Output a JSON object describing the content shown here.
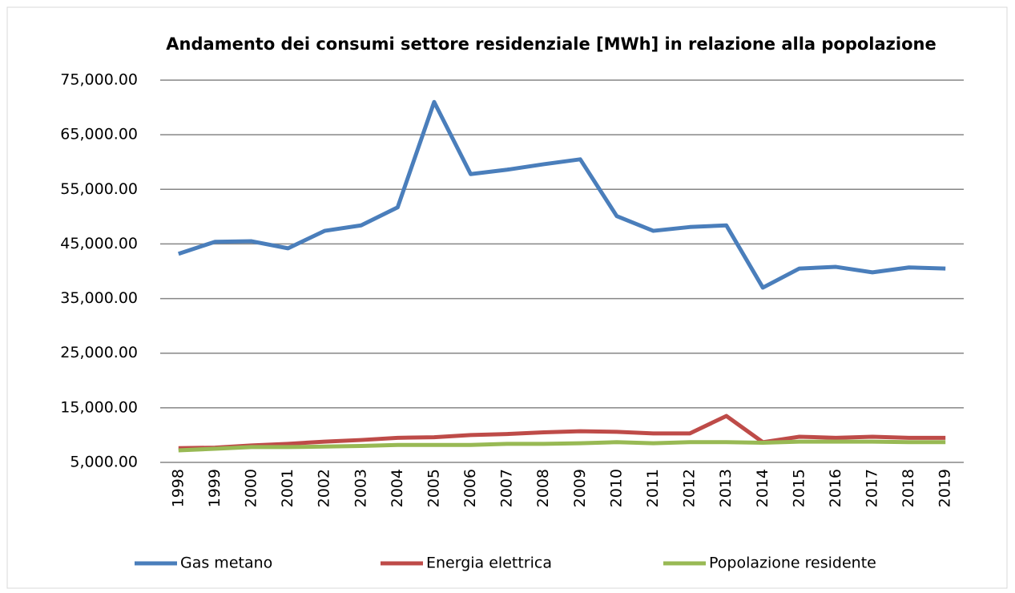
{
  "chart_data": {
    "type": "line",
    "title": "Andamento dei consumi settore residenziale [MWh] in relazione alla popolazione",
    "categories": [
      "1998",
      "1999",
      "2000",
      "2001",
      "2002",
      "2003",
      "2004",
      "2005",
      "2006",
      "2007",
      "2008",
      "2009",
      "2010",
      "2011",
      "2012",
      "2013",
      "2014",
      "2015",
      "2016",
      "2017",
      "2018",
      "2019"
    ],
    "series": [
      {
        "name": "Gas metano",
        "color": "#4a7ebb",
        "values": [
          43200,
          45400,
          45500,
          44200,
          47400,
          48400,
          51700,
          71000,
          57800,
          58600,
          59600,
          60500,
          50100,
          47400,
          48100,
          48400,
          37000,
          40500,
          40800,
          39800,
          40700,
          40500
        ]
      },
      {
        "name": "Energia elettrica",
        "color": "#be4b48",
        "values": [
          7600,
          7700,
          8100,
          8400,
          8800,
          9100,
          9500,
          9600,
          10000,
          10200,
          10500,
          10700,
          10600,
          10300,
          10300,
          13500,
          8700,
          9700,
          9500,
          9700,
          9500,
          9500
        ]
      },
      {
        "name": "Popolazione residente",
        "color": "#98b954",
        "values": [
          7200,
          7500,
          7800,
          7800,
          7900,
          8000,
          8200,
          8200,
          8200,
          8400,
          8400,
          8500,
          8700,
          8500,
          8700,
          8700,
          8600,
          8800,
          8800,
          8800,
          8700,
          8700
        ]
      }
    ],
    "ylim": [
      5000,
      75000
    ],
    "yticks": [
      {
        "value": 5000,
        "label": "5,000.00"
      },
      {
        "value": 15000,
        "label": "15,000.00"
      },
      {
        "value": 25000,
        "label": "25,000.00"
      },
      {
        "value": 35000,
        "label": "35,000.00"
      },
      {
        "value": 45000,
        "label": "45,000.00"
      },
      {
        "value": 55000,
        "label": "55,000.00"
      },
      {
        "value": 65000,
        "label": "65,000.00"
      },
      {
        "value": 75000,
        "label": "75,000.00"
      }
    ],
    "grid": true,
    "legend": "bottom"
  }
}
